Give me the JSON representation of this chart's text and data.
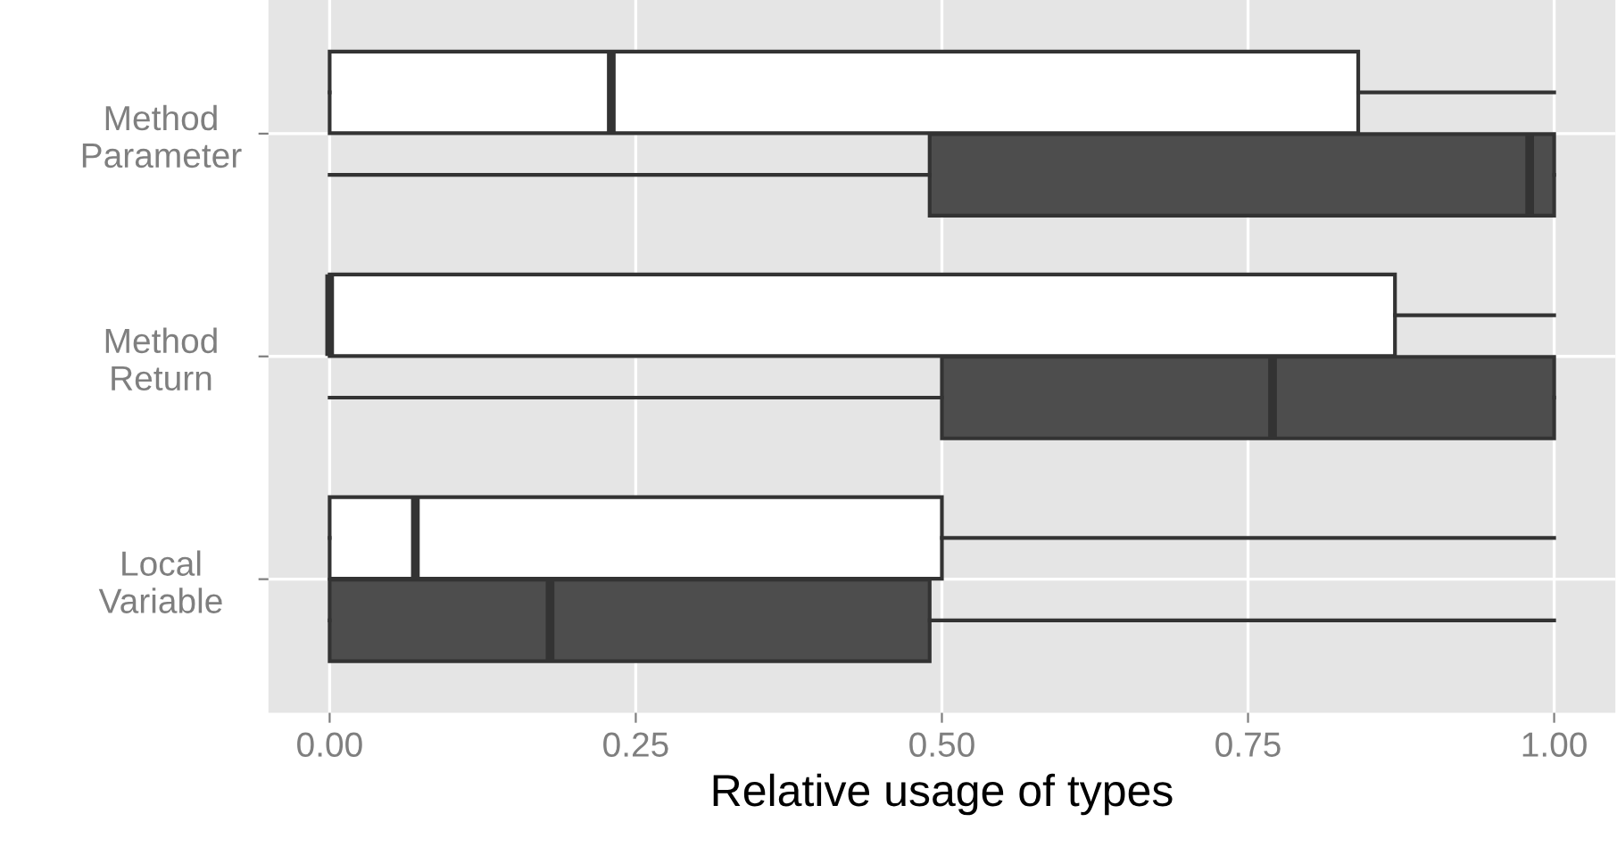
{
  "chart_data": {
    "type": "box",
    "orientation": "horizontal",
    "categories": [
      "Method\nParameter",
      "Method\nReturn",
      "Local\nVariable"
    ],
    "series": [
      {
        "color": "#ffffff",
        "boxes": [
          {
            "low": 0,
            "q1": 0,
            "median": 0.23,
            "q3": 0.84,
            "high": 1.0
          },
          {
            "low": 0,
            "q1": 0,
            "median": 0.0,
            "q3": 0.87,
            "high": 1.0
          },
          {
            "low": 0,
            "q1": 0,
            "median": 0.07,
            "q3": 0.5,
            "high": 1.0
          }
        ]
      },
      {
        "color": "#4d4d4d",
        "boxes": [
          {
            "low": 0,
            "q1": 0.49,
            "median": 0.98,
            "q3": 1.0,
            "high": 1.0
          },
          {
            "low": 0,
            "q1": 0.5,
            "median": 0.77,
            "q3": 1.0,
            "high": 1.0
          },
          {
            "low": 0,
            "q1": 0,
            "median": 0.18,
            "q3": 0.49,
            "high": 1.0
          }
        ]
      }
    ],
    "xlim": [
      -0.05,
      1.05
    ],
    "xticks": [
      {
        "value": 0,
        "label": "0.00"
      },
      {
        "value": 0.25,
        "label": "0.25"
      },
      {
        "value": 0.5,
        "label": "0.50"
      },
      {
        "value": 0.75,
        "label": "0.75"
      },
      {
        "value": 1,
        "label": "1.00"
      }
    ],
    "xlabel": "Relative usage of types",
    "grid": true
  }
}
